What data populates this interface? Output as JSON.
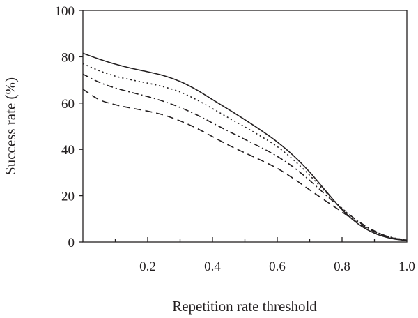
{
  "chart_data": {
    "type": "line",
    "title": "",
    "xlabel": "Repetition rate threshold",
    "ylabel": "Success rate (%)",
    "xlim": [
      0,
      1.0
    ],
    "ylim": [
      0,
      100
    ],
    "xticks": [
      0.2,
      0.4,
      0.6,
      0.8,
      1.0
    ],
    "xtick_labels": [
      "0.2",
      "0.4",
      "0.6",
      "0.8",
      "1.0"
    ],
    "yticks": [
      0,
      20,
      40,
      60,
      80,
      100
    ],
    "ytick_labels": [
      "0",
      "20",
      "40",
      "60",
      "80",
      "100"
    ],
    "grid": false,
    "legend": "none",
    "series": [
      {
        "style": "solid",
        "x": [
          0.0,
          0.05,
          0.1,
          0.15,
          0.2,
          0.25,
          0.3,
          0.35,
          0.4,
          0.45,
          0.5,
          0.55,
          0.6,
          0.65,
          0.7,
          0.75,
          0.8,
          0.85,
          0.9,
          0.95,
          1.0
        ],
        "y": [
          81.5,
          79,
          76.8,
          75,
          73.5,
          71.8,
          69.3,
          65.8,
          61.5,
          57.2,
          52.8,
          48.2,
          43.2,
          37.3,
          30.2,
          22,
          14,
          7.8,
          3.8,
          1.6,
          0.6
        ]
      },
      {
        "style": "dotted",
        "x": [
          0.0,
          0.05,
          0.1,
          0.15,
          0.2,
          0.25,
          0.3,
          0.35,
          0.4,
          0.45,
          0.5,
          0.55,
          0.6,
          0.65,
          0.7,
          0.75,
          0.8,
          0.85,
          0.9,
          0.95,
          1.0
        ],
        "y": [
          77,
          74,
          71.6,
          70,
          68.6,
          67,
          64.8,
          61.5,
          57.6,
          53.6,
          49.7,
          45.6,
          41.2,
          35.5,
          28.8,
          21.5,
          14.6,
          8.8,
          4.6,
          2.1,
          0.9
        ]
      },
      {
        "style": "dash-dot",
        "x": [
          0.0,
          0.05,
          0.1,
          0.15,
          0.2,
          0.25,
          0.3,
          0.35,
          0.4,
          0.45,
          0.5,
          0.55,
          0.6,
          0.65,
          0.7,
          0.75,
          0.8,
          0.85,
          0.9,
          0.95,
          1.0
        ],
        "y": [
          72.5,
          69,
          66.5,
          64.6,
          62.8,
          60.7,
          58.1,
          55,
          51.4,
          47.8,
          44.3,
          40.8,
          37,
          32.3,
          26.6,
          20.3,
          14.3,
          9,
          4.8,
          2,
          0.8
        ]
      },
      {
        "style": "dashed",
        "x": [
          0.0,
          0.05,
          0.1,
          0.15,
          0.2,
          0.25,
          0.3,
          0.35,
          0.4,
          0.45,
          0.5,
          0.55,
          0.6,
          0.65,
          0.7,
          0.75,
          0.8,
          0.85,
          0.9,
          0.95,
          1.0
        ],
        "y": [
          66,
          61.5,
          59.3,
          57.8,
          56.5,
          54.8,
          52.3,
          49.2,
          45.5,
          41.8,
          38.5,
          35.3,
          31.8,
          27.4,
          22.5,
          17.7,
          13,
          8.2,
          4.4,
          1.9,
          0.8
        ]
      }
    ]
  }
}
